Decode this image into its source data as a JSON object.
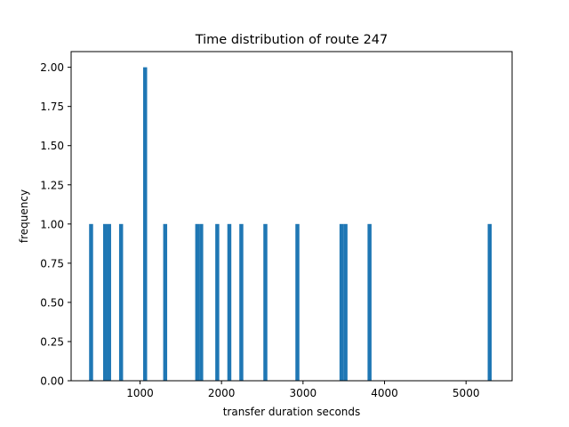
{
  "chart_data": {
    "type": "bar",
    "title": "Time distribution of route 247",
    "xlabel": "transfer duration seconds",
    "ylabel": "frequency",
    "xlim": [
      155,
      5565
    ],
    "ylim": [
      0,
      2.1
    ],
    "grid": false,
    "color": "#1f77b4",
    "bin_width": 49,
    "x_ticks": [
      {
        "value": 1000,
        "label": "1000"
      },
      {
        "value": 2000,
        "label": "2000"
      },
      {
        "value": 3000,
        "label": "3000"
      },
      {
        "value": 4000,
        "label": "4000"
      },
      {
        "value": 5000,
        "label": "5000"
      }
    ],
    "y_ticks": [
      {
        "value": 0.0,
        "label": "0.00"
      },
      {
        "value": 0.25,
        "label": "0.25"
      },
      {
        "value": 0.5,
        "label": "0.50"
      },
      {
        "value": 0.75,
        "label": "0.75"
      },
      {
        "value": 1.0,
        "label": "1.00"
      },
      {
        "value": 1.25,
        "label": "1.25"
      },
      {
        "value": 1.5,
        "label": "1.50"
      },
      {
        "value": 1.75,
        "label": "1.75"
      },
      {
        "value": 2.0,
        "label": "2.00"
      }
    ],
    "bins": [
      {
        "x": 400,
        "count": 1
      },
      {
        "x": 572,
        "count": 1
      },
      {
        "x": 621,
        "count": 1
      },
      {
        "x": 768,
        "count": 1
      },
      {
        "x": 1063,
        "count": 2
      },
      {
        "x": 1309,
        "count": 1
      },
      {
        "x": 1702,
        "count": 1
      },
      {
        "x": 1751,
        "count": 1
      },
      {
        "x": 1948,
        "count": 1
      },
      {
        "x": 2096,
        "count": 1
      },
      {
        "x": 2243,
        "count": 1
      },
      {
        "x": 2538,
        "count": 1
      },
      {
        "x": 2931,
        "count": 1
      },
      {
        "x": 3472,
        "count": 1
      },
      {
        "x": 3521,
        "count": 1
      },
      {
        "x": 3816,
        "count": 1
      },
      {
        "x": 5290,
        "count": 1
      }
    ]
  }
}
